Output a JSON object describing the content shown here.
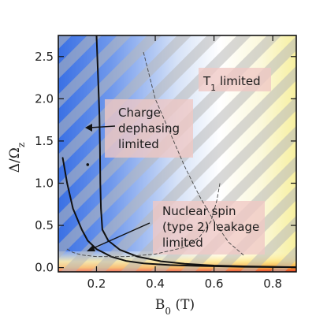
{
  "chart_data": {
    "type": "line",
    "xlabel": "B_0 (T)",
    "ylabel": "Δ/Ω_z",
    "xlim": [
      0.07,
      0.88
    ],
    "ylim": [
      -0.05,
      2.75
    ],
    "x_ticks": [
      0.2,
      0.4,
      0.6,
      0.8
    ],
    "x_tick_labels": [
      "0.2",
      "0.4",
      "0.6",
      "0.8"
    ],
    "y_ticks": [
      0.0,
      0.5,
      1.0,
      1.5,
      2.0,
      2.5
    ],
    "y_tick_labels": [
      "0.0",
      "0.5",
      "1.0",
      "1.5",
      "2.0",
      "2.5"
    ],
    "grid": false,
    "series": [
      {
        "style": "solid",
        "x": [
          0.2,
          0.205,
          0.21,
          0.212,
          0.213,
          0.215,
          0.22,
          0.24,
          0.28,
          0.34,
          0.42,
          0.5,
          0.6,
          0.7,
          0.8,
          0.88
        ],
        "y": [
          2.75,
          2.3,
          1.8,
          1.4,
          1.0,
          0.7,
          0.45,
          0.32,
          0.21,
          0.13,
          0.075,
          0.045,
          0.025,
          0.015,
          0.01,
          0.005
        ]
      },
      {
        "style": "solid",
        "x": [
          0.085,
          0.1,
          0.12,
          0.15,
          0.17,
          0.2,
          0.25,
          0.3,
          0.36,
          0.45,
          0.55,
          0.7,
          0.88
        ],
        "y": [
          1.3,
          1.0,
          0.7,
          0.45,
          0.32,
          0.22,
          0.13,
          0.08,
          0.05,
          0.03,
          0.02,
          0.01,
          0.005
        ]
      },
      {
        "style": "dashed",
        "x": [
          0.36,
          0.4,
          0.45,
          0.5,
          0.55,
          0.6,
          0.65,
          0.7
        ],
        "y": [
          2.55,
          2.0,
          1.6,
          1.2,
          0.85,
          0.55,
          0.3,
          0.15
        ]
      },
      {
        "style": "dashed",
        "x": [
          0.1,
          0.12,
          0.15,
          0.2,
          0.3,
          0.4,
          0.5,
          0.55,
          0.59,
          0.61,
          0.62
        ],
        "y": [
          0.22,
          0.18,
          0.15,
          0.13,
          0.13,
          0.16,
          0.24,
          0.36,
          0.55,
          0.8,
          1.0
        ]
      }
    ],
    "points": [
      {
        "x": 0.17,
        "y": 1.22
      }
    ],
    "annotations": [
      {
        "lines": [
          "T",
          "1",
          " limited"
        ],
        "x": 0.545,
        "y": 1.82
      },
      {
        "lines": [
          "Charge",
          "dephasing",
          "limited"
        ],
        "x": 0.28,
        "y": 1.22,
        "arrow_to": [
          0.11,
          1.38
        ]
      },
      {
        "lines": [
          "Nuclear spin",
          "(type 2) leakage",
          "limited"
        ],
        "x": 0.35,
        "y": 0.12,
        "arrow_to": [
          0.11,
          0.17
        ]
      }
    ],
    "colors": {
      "blue_region": "#3f78e8",
      "white": "#ffffff",
      "yellow_region": "#f7f2a6",
      "red_band": "#e8341e",
      "hatch": "#b8b8b8",
      "label_box": "#f0c8c4"
    }
  },
  "labels": {
    "t1_main": "T",
    "t1_sub": "1",
    "t1_rest": " limited",
    "charge_1": "Charge",
    "charge_2": "dephasing",
    "charge_3": "limited",
    "nuclear_1": "Nuclear spin",
    "nuclear_2": "(type 2) leakage",
    "nuclear_3": "limited",
    "xlabel_main": "B",
    "xlabel_sub": "0",
    "xlabel_rest": " (T)",
    "ylabel_main": "Δ/Ω",
    "ylabel_sub": "z"
  }
}
